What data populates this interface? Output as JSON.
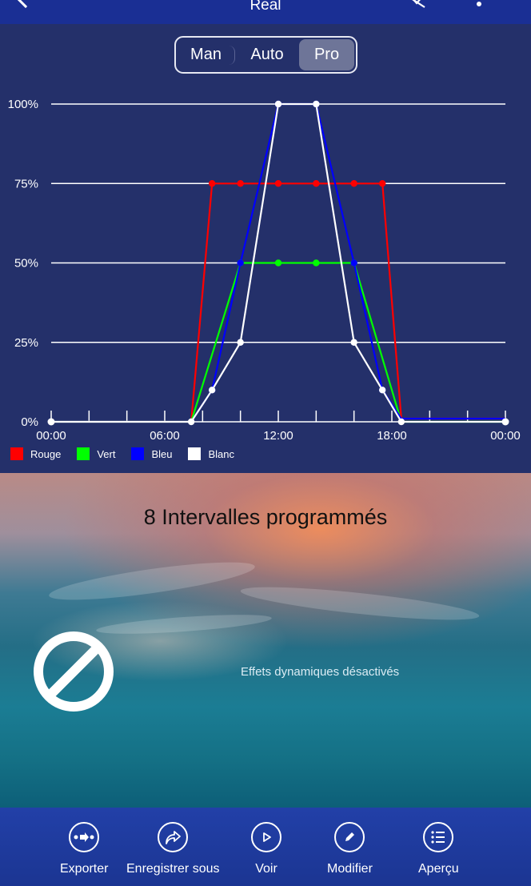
{
  "header": {
    "title": "Real",
    "back_icon": "chevron-left-icon",
    "bluetooth_icon": "bluetooth-off-icon",
    "more_icon": "more-vertical-icon"
  },
  "mode_selector": {
    "options": [
      "Man",
      "Auto",
      "Pro"
    ],
    "selected": "Pro"
  },
  "chart_data": {
    "type": "line",
    "x_unit": "hours",
    "xlim": [
      0,
      24
    ],
    "ylim": [
      0,
      100
    ],
    "x_ticks": [
      0,
      2,
      4,
      6,
      8,
      10,
      12,
      14,
      16,
      18,
      20,
      22,
      24
    ],
    "x_tick_labels": [
      {
        "x": 0,
        "label": "00:00"
      },
      {
        "x": 6,
        "label": "06:00"
      },
      {
        "x": 12,
        "label": "12:00"
      },
      {
        "x": 18,
        "label": "18:00"
      },
      {
        "x": 24,
        "label": "00:00"
      }
    ],
    "y_ticks": [
      {
        "y": 0,
        "label": "0%"
      },
      {
        "y": 25,
        "label": "25%"
      },
      {
        "y": 50,
        "label": "50%"
      },
      {
        "y": 75,
        "label": "75%"
      },
      {
        "y": 100,
        "label": "100%"
      }
    ],
    "grid": true,
    "legend_position": "bottom-left",
    "series": [
      {
        "name": "Rouge",
        "color": "#ff0000",
        "points": [
          [
            0,
            0
          ],
          [
            7.4,
            0
          ],
          [
            8.5,
            75
          ],
          [
            10,
            75
          ],
          [
            12,
            75
          ],
          [
            14,
            75
          ],
          [
            16,
            75
          ],
          [
            17.5,
            75
          ],
          [
            18.5,
            1
          ],
          [
            24,
            1
          ]
        ]
      },
      {
        "name": "Vert",
        "color": "#00ff00",
        "points": [
          [
            0,
            0
          ],
          [
            7.4,
            0
          ],
          [
            10,
            50
          ],
          [
            12,
            50
          ],
          [
            14,
            50
          ],
          [
            16,
            50
          ],
          [
            18.5,
            0
          ],
          [
            24,
            0
          ]
        ]
      },
      {
        "name": "Bleu",
        "color": "#0000ff",
        "points": [
          [
            0,
            0
          ],
          [
            7.4,
            0
          ],
          [
            8.5,
            10
          ],
          [
            10,
            50
          ],
          [
            12,
            100
          ],
          [
            14,
            100
          ],
          [
            16,
            50
          ],
          [
            17.5,
            10
          ],
          [
            18.5,
            1
          ],
          [
            24,
            1
          ]
        ]
      },
      {
        "name": "Blanc",
        "color": "#ffffff",
        "points": [
          [
            0,
            0
          ],
          [
            7.4,
            0
          ],
          [
            8.5,
            10
          ],
          [
            10,
            25
          ],
          [
            12,
            100
          ],
          [
            14,
            100
          ],
          [
            16,
            25
          ],
          [
            17.5,
            10
          ],
          [
            18.5,
            0
          ],
          [
            24,
            0
          ]
        ]
      }
    ]
  },
  "intervals": {
    "title": "8 Intervalles programmés",
    "effects_label": "Effets dynamiques désactivés",
    "effects_icon": "prohibited-icon"
  },
  "actions": [
    {
      "label": "Exporter",
      "icon": "export-icon"
    },
    {
      "label": "Enregistrer sous",
      "icon": "save-as-share-icon"
    },
    {
      "label": "Voir",
      "icon": "play-icon"
    },
    {
      "label": "Modifier",
      "icon": "pencil-icon"
    },
    {
      "label": "Aperçu",
      "icon": "list-icon"
    }
  ]
}
